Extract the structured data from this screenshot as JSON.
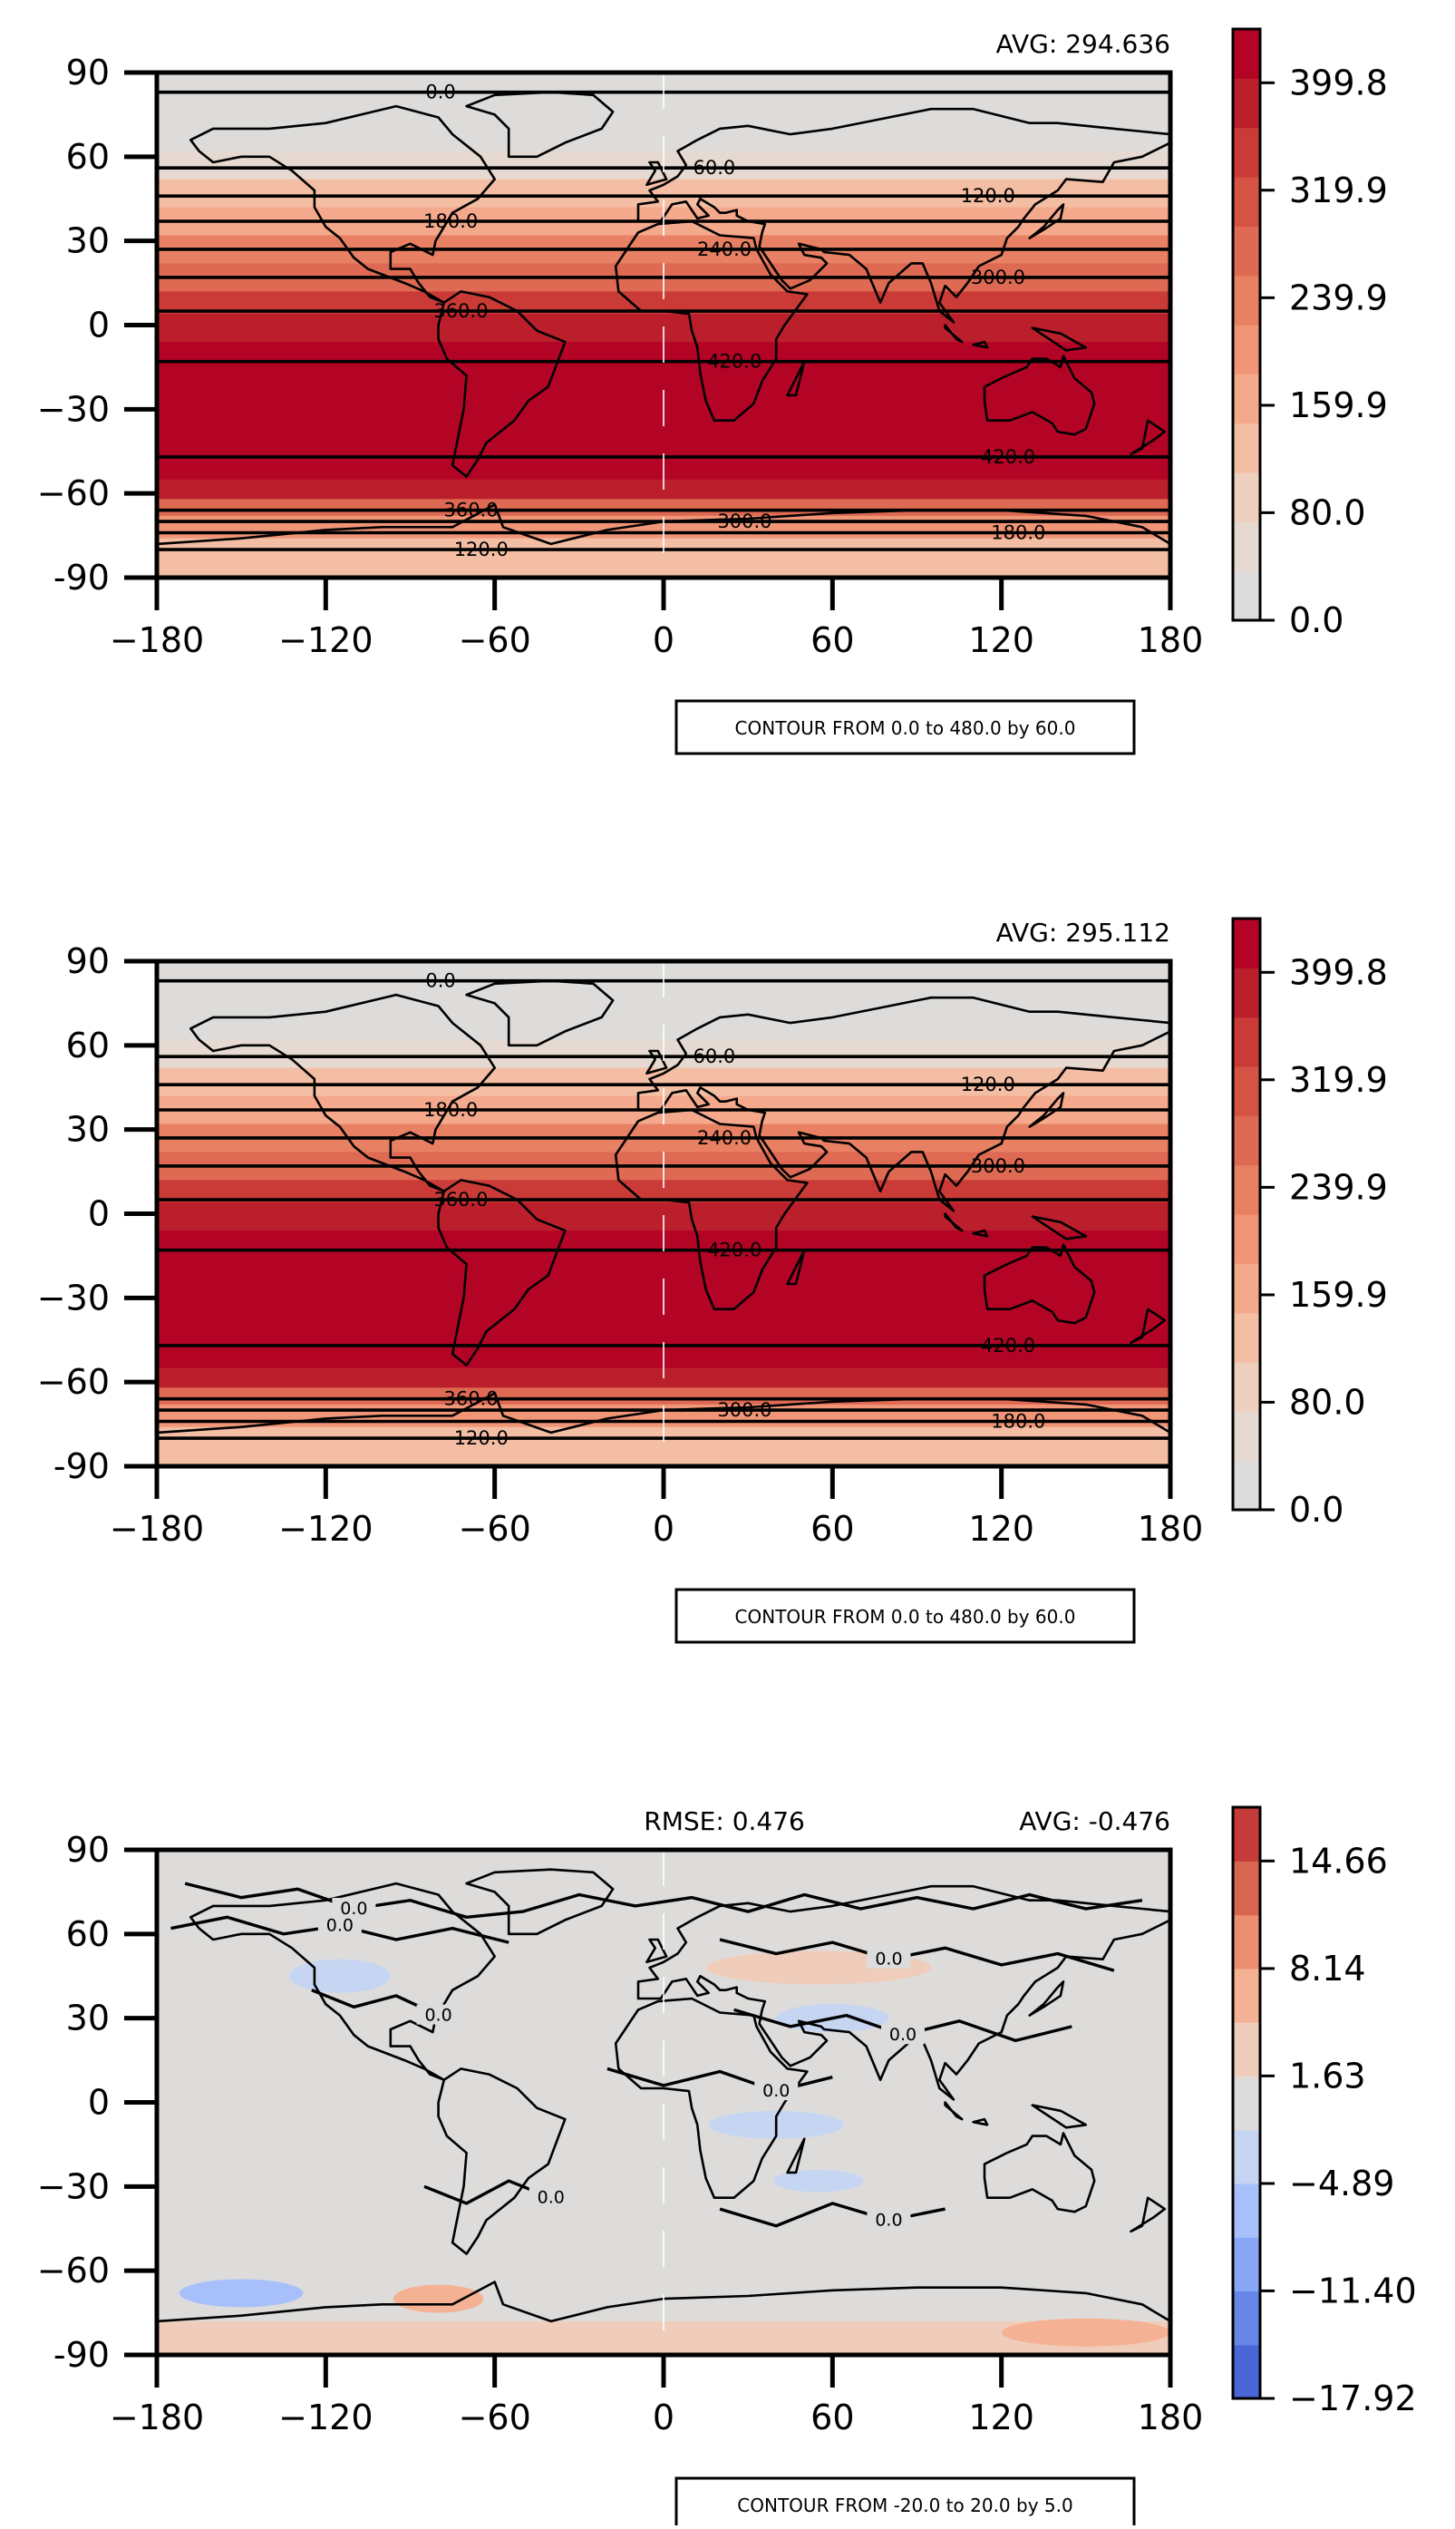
{
  "chart_data": [
    {
      "type": "heatmap",
      "title": "",
      "xlabel": "",
      "ylabel": "",
      "xlim": [
        -180,
        180
      ],
      "ylim": [
        -90,
        90
      ],
      "xticks": [
        "−180",
        "−120",
        "−60",
        "0",
        "60",
        "120",
        "180"
      ],
      "yticks": [
        "90",
        "60",
        "30",
        "0",
        "−30",
        "−60",
        "-90"
      ],
      "annotation_right": "AVG: 294.636",
      "annotation_left": "",
      "contour_box": "CONTOUR FROM 0.0 to 480.0 by 60.0",
      "colorbar": {
        "min": 0.0,
        "max": 439.8,
        "levels": 12,
        "ticks": [
          "0.0",
          "80.0",
          "159.9",
          "239.9",
          "319.9",
          "399.8"
        ],
        "tick_values": [
          0.0,
          80.0,
          159.9,
          239.9,
          319.9,
          399.8
        ],
        "colors": [
          "#dddcdb",
          "#e5d9d1",
          "#efcfbd",
          "#f4bea4",
          "#f4a98c",
          "#f19577",
          "#e88063",
          "#df6a53",
          "#d55344",
          "#ca3b37",
          "#bc1f2c",
          "#b40426"
        ]
      },
      "bands": [
        {
          "lat_from": 90,
          "lat_to": 62,
          "value": 5
        },
        {
          "lat_from": 62,
          "lat_to": 52,
          "value": 70
        },
        {
          "lat_from": 52,
          "lat_to": 42,
          "value": 115
        },
        {
          "lat_from": 42,
          "lat_to": 32,
          "value": 160
        },
        {
          "lat_from": 32,
          "lat_to": 22,
          "value": 220
        },
        {
          "lat_from": 22,
          "lat_to": 12,
          "value": 275
        },
        {
          "lat_from": 12,
          "lat_to": 4,
          "value": 330
        },
        {
          "lat_from": 4,
          "lat_to": -6,
          "value": 375
        },
        {
          "lat_from": -6,
          "lat_to": -55,
          "value": 425
        },
        {
          "lat_from": -55,
          "lat_to": -62,
          "value": 380
        },
        {
          "lat_from": -62,
          "lat_to": -68,
          "value": 290
        },
        {
          "lat_from": -68,
          "lat_to": -76,
          "value": 190
        },
        {
          "lat_from": -76,
          "lat_to": -90,
          "value": 130
        }
      ],
      "contour_lines": [
        {
          "lat": 83,
          "label": "0.0"
        },
        {
          "lat": 56,
          "label": "60.0"
        },
        {
          "lat": 46,
          "label": "120.0"
        },
        {
          "lat": 37,
          "label": "180.0"
        },
        {
          "lat": 27,
          "label": "240.0"
        },
        {
          "lat": 17,
          "label": "300.0"
        },
        {
          "lat": 5,
          "label": "360.0"
        },
        {
          "lat": -13,
          "label": "420.0"
        },
        {
          "lat": -47,
          "label": "420.0"
        },
        {
          "lat": -66,
          "label": "360.0"
        },
        {
          "lat": -70,
          "label": "300.0"
        },
        {
          "lat": -74,
          "label": "180.0"
        },
        {
          "lat": -80,
          "label": "120.0"
        }
      ]
    },
    {
      "type": "heatmap",
      "title": "",
      "xlabel": "",
      "ylabel": "",
      "xlim": [
        -180,
        180
      ],
      "ylim": [
        -90,
        90
      ],
      "xticks": [
        "−180",
        "−120",
        "−60",
        "0",
        "60",
        "120",
        "180"
      ],
      "yticks": [
        "90",
        "60",
        "30",
        "0",
        "−30",
        "−60",
        "-90"
      ],
      "annotation_right": "AVG: 295.112",
      "annotation_left": "",
      "contour_box": "CONTOUR FROM 0.0 to 480.0 by 60.0",
      "colorbar": {
        "min": 0.0,
        "max": 439.8,
        "levels": 12,
        "ticks": [
          "0.0",
          "80.0",
          "159.9",
          "239.9",
          "319.9",
          "399.8"
        ],
        "tick_values": [
          0.0,
          80.0,
          159.9,
          239.9,
          319.9,
          399.8
        ],
        "colors": [
          "#dddcdb",
          "#e5d9d1",
          "#efcfbd",
          "#f4bea4",
          "#f4a98c",
          "#f19577",
          "#e88063",
          "#df6a53",
          "#d55344",
          "#ca3b37",
          "#bc1f2c",
          "#b40426"
        ]
      },
      "bands": [
        {
          "lat_from": 90,
          "lat_to": 62,
          "value": 5
        },
        {
          "lat_from": 62,
          "lat_to": 52,
          "value": 70
        },
        {
          "lat_from": 52,
          "lat_to": 42,
          "value": 115
        },
        {
          "lat_from": 42,
          "lat_to": 32,
          "value": 160
        },
        {
          "lat_from": 32,
          "lat_to": 22,
          "value": 220
        },
        {
          "lat_from": 22,
          "lat_to": 12,
          "value": 275
        },
        {
          "lat_from": 12,
          "lat_to": 4,
          "value": 330
        },
        {
          "lat_from": 4,
          "lat_to": -6,
          "value": 375
        },
        {
          "lat_from": -6,
          "lat_to": -55,
          "value": 425
        },
        {
          "lat_from": -55,
          "lat_to": -62,
          "value": 380
        },
        {
          "lat_from": -62,
          "lat_to": -68,
          "value": 290
        },
        {
          "lat_from": -68,
          "lat_to": -76,
          "value": 190
        },
        {
          "lat_from": -76,
          "lat_to": -90,
          "value": 130
        }
      ],
      "contour_lines": [
        {
          "lat": 83,
          "label": "0.0"
        },
        {
          "lat": 56,
          "label": "60.0"
        },
        {
          "lat": 46,
          "label": "120.0"
        },
        {
          "lat": 37,
          "label": "180.0"
        },
        {
          "lat": 27,
          "label": "240.0"
        },
        {
          "lat": 17,
          "label": "300.0"
        },
        {
          "lat": 5,
          "label": "360.0"
        },
        {
          "lat": -13,
          "label": "420.0"
        },
        {
          "lat": -47,
          "label": "420.0"
        },
        {
          "lat": -66,
          "label": "360.0"
        },
        {
          "lat": -70,
          "label": "300.0"
        },
        {
          "lat": -74,
          "label": "180.0"
        },
        {
          "lat": -80,
          "label": "120.0"
        }
      ]
    },
    {
      "type": "heatmap",
      "title": "",
      "xlabel": "",
      "ylabel": "",
      "xlim": [
        -180,
        180
      ],
      "ylim": [
        -90,
        90
      ],
      "xticks": [
        "−180",
        "−120",
        "−60",
        "0",
        "60",
        "120",
        "180"
      ],
      "yticks": [
        "90",
        "60",
        "30",
        "0",
        "−30",
        "−60",
        "-90"
      ],
      "annotation_right": "AVG: -0.476",
      "annotation_left": "RMSE: 0.476",
      "contour_box": "CONTOUR FROM -20.0 to 20.0 by 5.0",
      "colorbar": {
        "min": -17.92,
        "max": 17.92,
        "levels": 11,
        "ticks": [
          "−17.92",
          "−11.40",
          "−4.89",
          "1.63",
          "8.14",
          "14.66"
        ],
        "tick_values": [
          -17.92,
          -11.4,
          -4.89,
          1.63,
          8.14,
          14.66
        ],
        "colors": [
          "#4a66d6",
          "#6687e8",
          "#87a6f5",
          "#a7c0fb",
          "#c6d6f2",
          "#dddcdb",
          "#f0cdbb",
          "#f5b193",
          "#eb8f70",
          "#d8654f",
          "#c43b39"
        ]
      },
      "bands": [
        {
          "lat_from": 90,
          "lat_to": -65,
          "value": 0.0
        },
        {
          "lat_from": -65,
          "lat_to": -78,
          "value": 0.0
        },
        {
          "lat_from": -78,
          "lat_to": -90,
          "value": 3.0
        }
      ],
      "patches": [
        {
          "lon": -115,
          "lat": 45,
          "rx": 18,
          "ry": 6,
          "value": -4.0
        },
        {
          "lon": 55,
          "lat": 48,
          "rx": 40,
          "ry": 6,
          "value": 3.0
        },
        {
          "lon": 60,
          "lat": 30,
          "rx": 20,
          "ry": 5,
          "value": -3.0
        },
        {
          "lon": 40,
          "lat": -8,
          "rx": 24,
          "ry": 5,
          "value": -3.0
        },
        {
          "lon": 55,
          "lat": -28,
          "rx": 16,
          "ry": 4,
          "value": -3.0
        },
        {
          "lon": -150,
          "lat": -68,
          "rx": 22,
          "ry": 5,
          "value": -6.0
        },
        {
          "lon": -80,
          "lat": -70,
          "rx": 16,
          "ry": 5,
          "value": 5.0
        },
        {
          "lon": 150,
          "lat": -82,
          "rx": 30,
          "ry": 5,
          "value": 5.0
        }
      ],
      "contour_lines": [
        {
          "lat": 80,
          "label": "0.0"
        },
        {
          "lat": 60,
          "label": "0.0"
        },
        {
          "lat": 25,
          "label": "0.0"
        },
        {
          "lat": 5,
          "label": "0.0"
        },
        {
          "lat": -45,
          "label": "0.0"
        },
        {
          "lat": -62,
          "label": "0.0"
        },
        {
          "lat": -72,
          "label": "0.0"
        },
        {
          "lat": -85,
          "label": "0.0"
        }
      ]
    }
  ]
}
